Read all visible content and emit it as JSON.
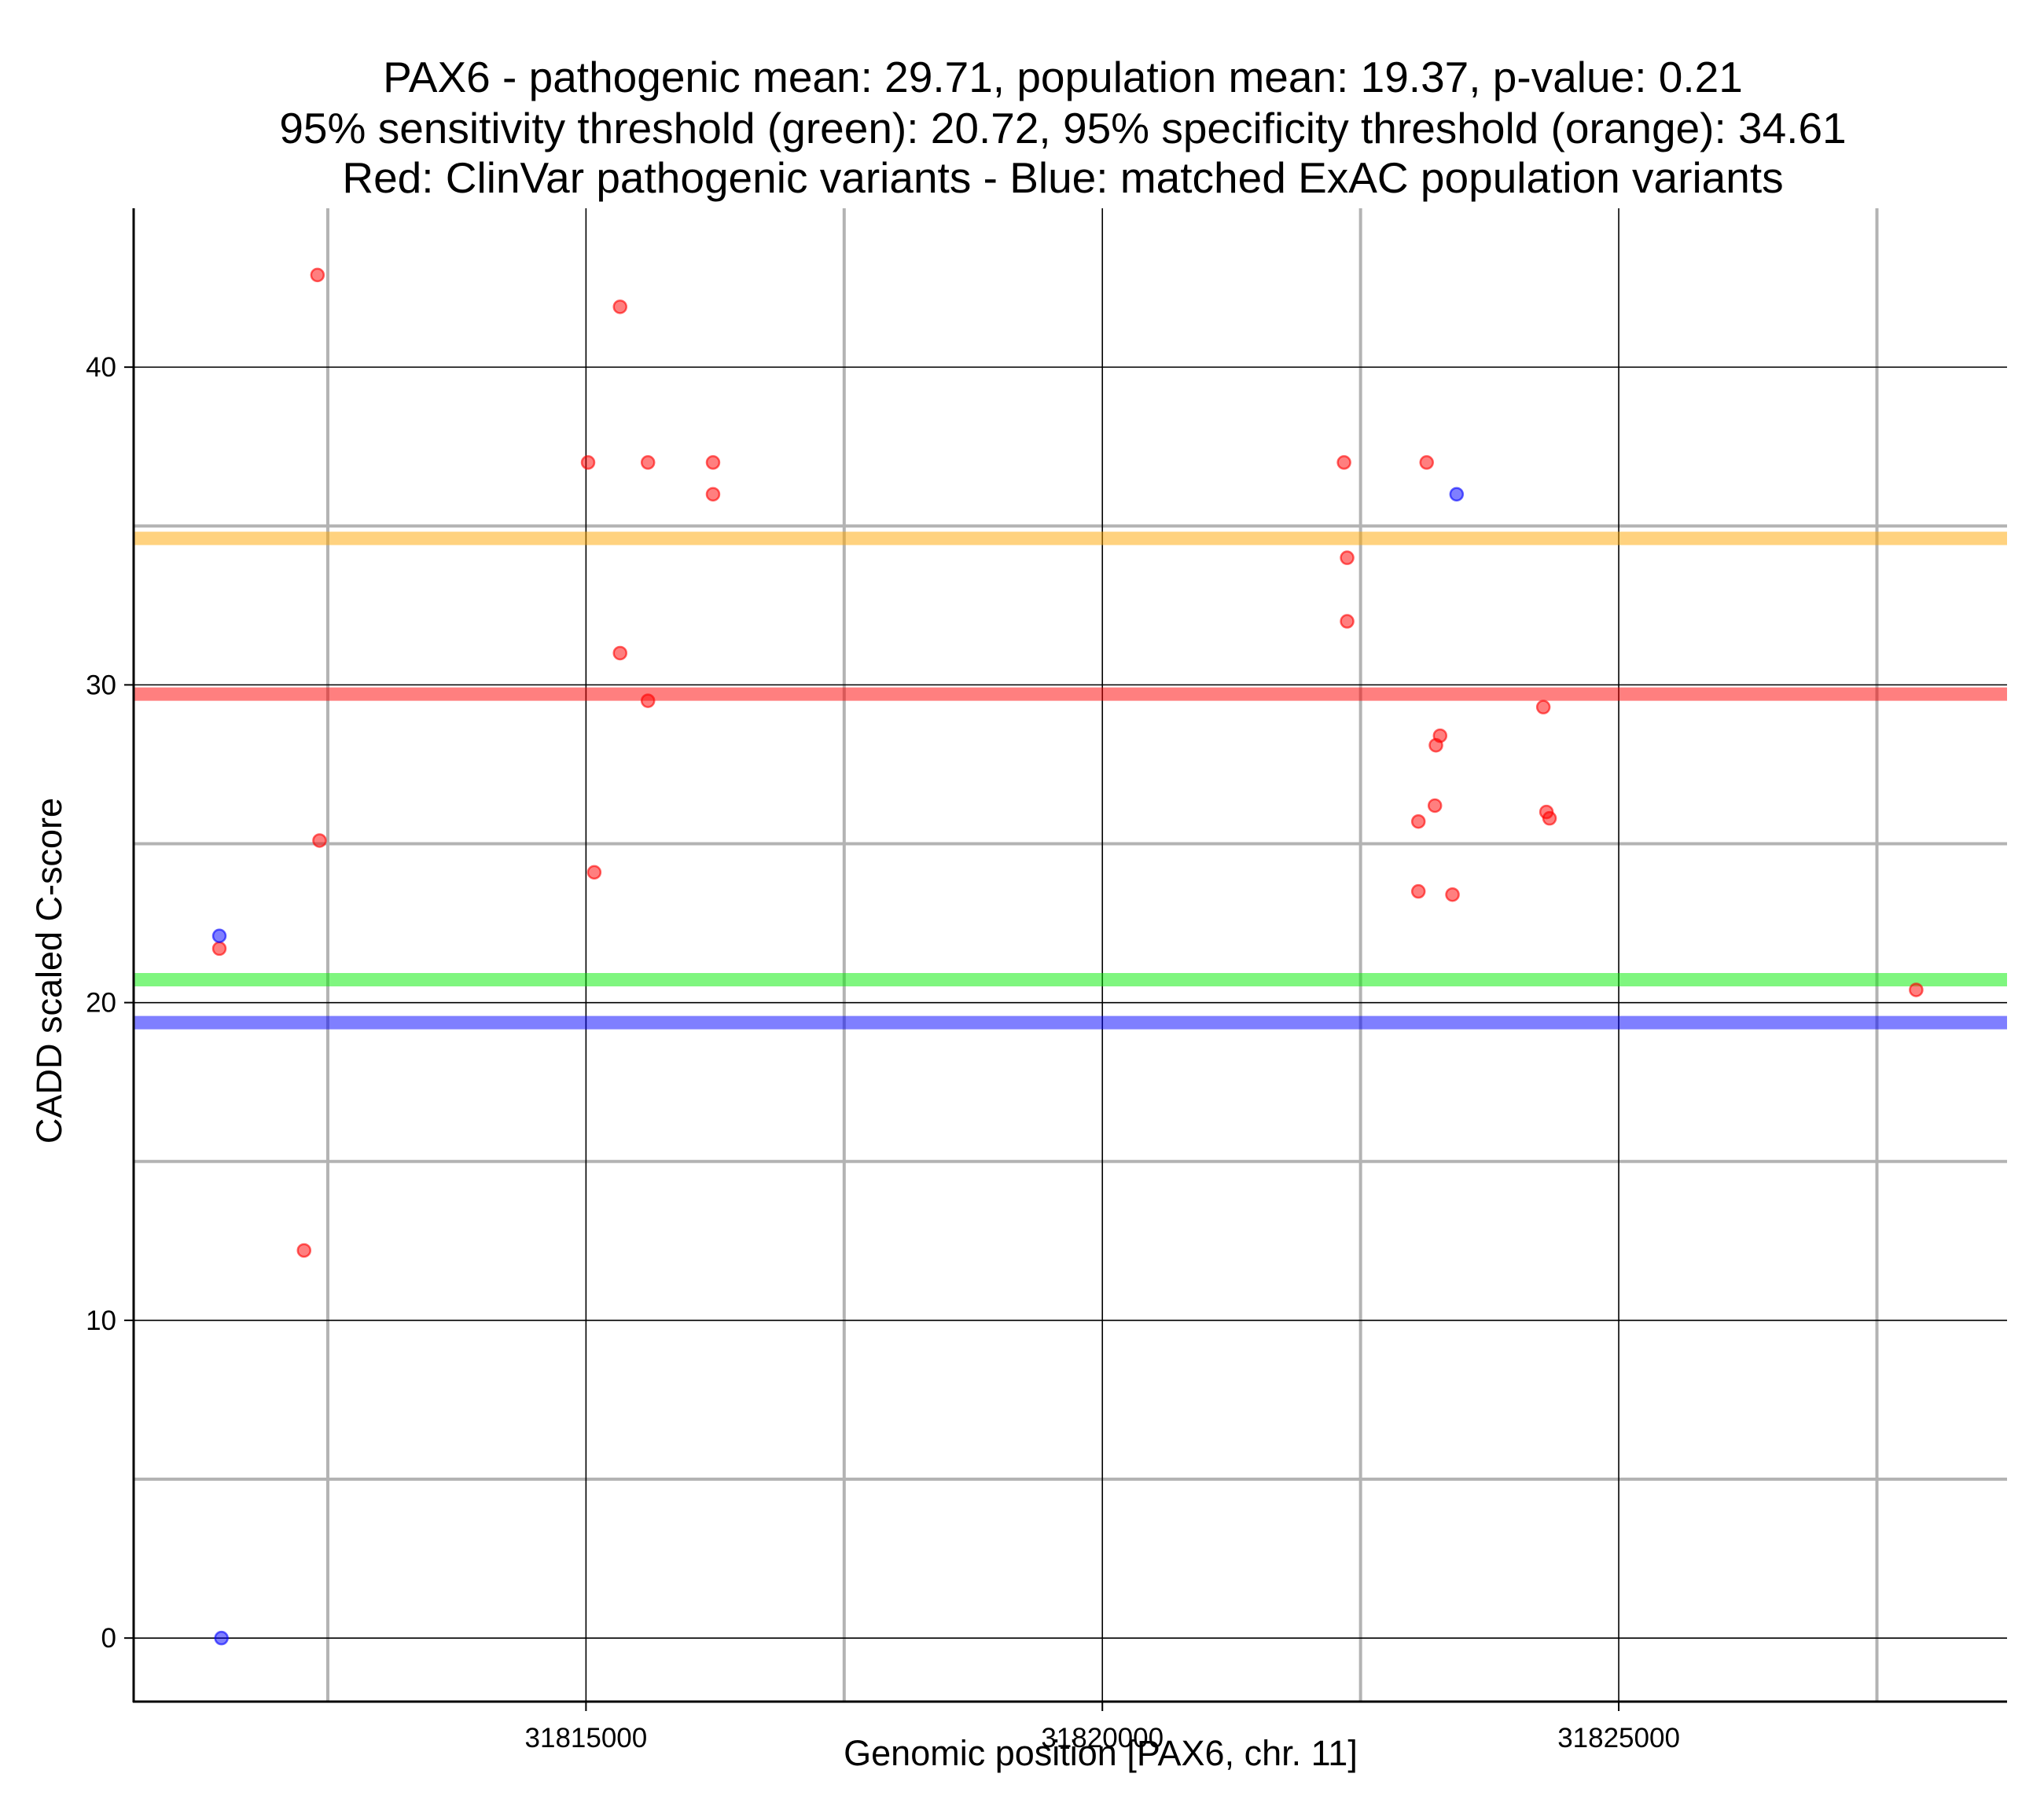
{
  "chart_data": {
    "type": "scatter",
    "title_lines": [
      "PAX6 - pathogenic mean: 29.71, population mean: 19.37, p-value: 0.21",
      "95% sensitivity threshold (green): 20.72, 95% specificity threshold (orange): 34.61",
      "Red: ClinVar pathogenic variants - Blue: matched ExAC population variants"
    ],
    "xlabel": "Genomic position [PAX6, chr. 11]",
    "ylabel": "CADD scaled C-score",
    "xlim": [
      31810620,
      31828760
    ],
    "ylim": [
      -2,
      45
    ],
    "x_ticks": [
      31815000,
      31820000,
      31825000
    ],
    "x_tick_labels": [
      "31815000",
      "31820000",
      "31825000"
    ],
    "x_minor_gridlines": [
      31812500,
      31817500,
      31822500,
      31827500
    ],
    "y_ticks": [
      0,
      10,
      20,
      30,
      40
    ],
    "y_tick_labels": [
      "0",
      "10",
      "20",
      "30",
      "40"
    ],
    "y_minor_gridlines": [
      5,
      15,
      25,
      35
    ],
    "grid": true,
    "colors": {
      "pathogenic": "#ff0000",
      "population": "#0000ff",
      "sensitivity_threshold": "#00ee00",
      "specificity_threshold": "#ffa500",
      "major_grid": "#000000",
      "minor_grid": "#b3b3b3"
    },
    "reference_lines": [
      {
        "name": "specificity-threshold",
        "label": "95% specificity threshold (orange)",
        "y": 34.61,
        "color": "#ffa500"
      },
      {
        "name": "pathogenic-mean",
        "label": "pathogenic mean",
        "y": 29.71,
        "color": "#ff0000"
      },
      {
        "name": "sensitivity-threshold",
        "label": "95% sensitivity threshold (green)",
        "y": 20.72,
        "color": "#00ee00"
      },
      {
        "name": "population-mean",
        "label": "population mean",
        "y": 19.37,
        "color": "#0000ff"
      }
    ],
    "series": [
      {
        "name": "ClinVar pathogenic variants",
        "color": "#ff0000",
        "points": [
          {
            "x": 31811450,
            "y": 21.7
          },
          {
            "x": 31812270,
            "y": 12.2
          },
          {
            "x": 31812400,
            "y": 42.9
          },
          {
            "x": 31812420,
            "y": 25.1
          },
          {
            "x": 31815020,
            "y": 37.0
          },
          {
            "x": 31815080,
            "y": 24.1
          },
          {
            "x": 31815330,
            "y": 41.9
          },
          {
            "x": 31815330,
            "y": 31.0
          },
          {
            "x": 31815600,
            "y": 37.0
          },
          {
            "x": 31815600,
            "y": 29.5
          },
          {
            "x": 31816230,
            "y": 37.0
          },
          {
            "x": 31816230,
            "y": 36.0
          },
          {
            "x": 31822340,
            "y": 37.0
          },
          {
            "x": 31822370,
            "y": 34.0
          },
          {
            "x": 31822370,
            "y": 32.0
          },
          {
            "x": 31823060,
            "y": 25.7
          },
          {
            "x": 31823060,
            "y": 23.5
          },
          {
            "x": 31823140,
            "y": 37.0
          },
          {
            "x": 31823220,
            "y": 26.2
          },
          {
            "x": 31823230,
            "y": 28.1
          },
          {
            "x": 31823270,
            "y": 28.4
          },
          {
            "x": 31823390,
            "y": 23.4
          },
          {
            "x": 31824270,
            "y": 29.3
          },
          {
            "x": 31824300,
            "y": 26.0
          },
          {
            "x": 31824330,
            "y": 25.8
          },
          {
            "x": 31827880,
            "y": 20.4
          }
        ]
      },
      {
        "name": "matched ExAC population variants",
        "color": "#0000ff",
        "points": [
          {
            "x": 31811450,
            "y": 22.1
          },
          {
            "x": 31811470,
            "y": 0.0
          },
          {
            "x": 31823430,
            "y": 36.0
          }
        ]
      }
    ]
  }
}
